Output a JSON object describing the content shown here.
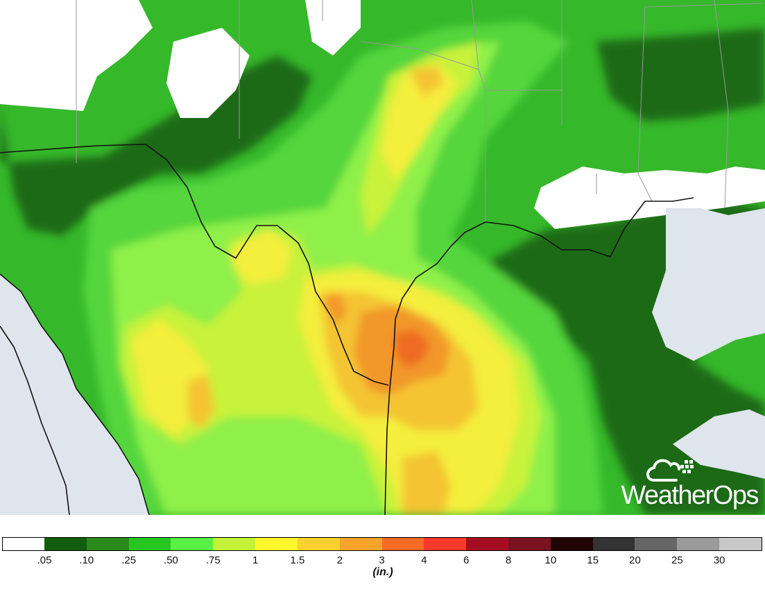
{
  "map": {
    "colors": {
      "ocean": "#dfe5ec",
      "land": "#ffffff",
      "border": "#111111",
      "state_line": "#999999",
      "lt05": "#ffffff",
      "c05": "#1d6b12",
      "c10": "#2f8d1f",
      "c25": "#36b82b",
      "c50": "#55d63c",
      "c75": "#8ff04a",
      "c1": "#c9f23b",
      "c15": "#f4ee3c",
      "c2": "#f4c430",
      "c3": "#f2972b",
      "c4": "#ee6c22"
    }
  },
  "brand": {
    "name": "WeatherOps",
    "icon": "cloud-satellite-icon"
  },
  "legend": {
    "unit": "(in.)",
    "bins": [
      {
        "color": "#ffffff"
      },
      {
        "color": "#115e0c"
      },
      {
        "color": "#2b8a1c"
      },
      {
        "color": "#27c520"
      },
      {
        "color": "#58f045"
      },
      {
        "color": "#c3f238"
      },
      {
        "color": "#fff72e"
      },
      {
        "color": "#fbd02f"
      },
      {
        "color": "#f9a32c"
      },
      {
        "color": "#f86b25"
      },
      {
        "color": "#f93a2a"
      },
      {
        "color": "#a50e22"
      },
      {
        "color": "#7a1220"
      },
      {
        "color": "#200406"
      },
      {
        "color": "#333333"
      },
      {
        "color": "#666666"
      },
      {
        "color": "#9a9a9a"
      },
      {
        "color": "#c8c8c8"
      }
    ],
    "ticks": [
      ".05",
      ".10",
      ".25",
      ".50",
      ".75",
      "1",
      "1.5",
      "2",
      "3",
      "4",
      "6",
      "8",
      "10",
      "15",
      "20",
      "25",
      "30"
    ]
  }
}
